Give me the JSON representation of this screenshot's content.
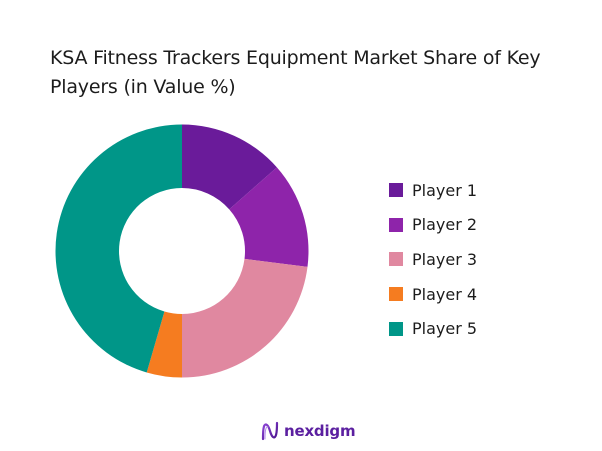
{
  "chart_data": {
    "type": "pie",
    "subtype": "donut",
    "title": "KSA Fitness Trackers Equipment Market Share of Key Players (in Value %)",
    "title_lines": [
      "KSA Fitness Trackers Equipment Market Share of Key",
      "Players (in Value %)"
    ],
    "categories": [
      "Player 1",
      "Player 2",
      "Player 3",
      "Player 4",
      "Player 5"
    ],
    "values": [
      13.5,
      13.5,
      23,
      4.5,
      45.5
    ],
    "colors": [
      "#6a1b9a",
      "#8e24aa",
      "#e088a0",
      "#f57c20",
      "#009688"
    ],
    "legend_position": "right",
    "start_angle": "12 o'clock, clockwise"
  },
  "legend": {
    "items": [
      {
        "label": "Player 1",
        "color": "#6a1b9a"
      },
      {
        "label": "Player 2",
        "color": "#8e24aa"
      },
      {
        "label": "Player 3",
        "color": "#e088a0"
      },
      {
        "label": "Player 4",
        "color": "#f57c20"
      },
      {
        "label": "Player 5",
        "color": "#009688"
      }
    ]
  },
  "logo": {
    "text": "nexdigm"
  }
}
